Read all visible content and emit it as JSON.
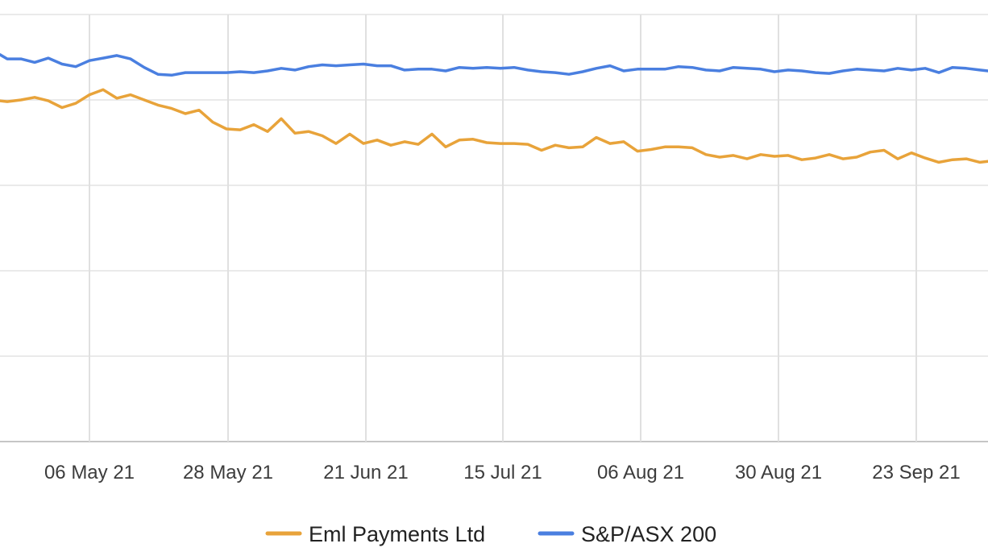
{
  "chart_data": {
    "type": "line",
    "title": "",
    "xlabel": "",
    "ylabel": "",
    "grid": true,
    "legend_position": "bottom",
    "x_ticks": [
      "06 May 21",
      "28 May 21",
      "21 Jun 21",
      "15 Jul 21",
      "06 Aug 21",
      "30 Aug 21",
      "23 Sep 21"
    ],
    "x_range": [
      0,
      1226
    ],
    "y_range": [
      0,
      50
    ],
    "series": [
      {
        "name": "Eml Payments Ltd",
        "color": "#e8a33a",
        "points": [
          [
            0,
            39.9
          ],
          [
            9,
            39.8
          ],
          [
            26,
            40.0
          ],
          [
            43,
            40.3
          ],
          [
            60,
            39.9
          ],
          [
            77,
            39.1
          ],
          [
            94,
            39.6
          ],
          [
            111,
            40.6
          ],
          [
            128,
            41.2
          ],
          [
            145,
            40.2
          ],
          [
            162,
            40.6
          ],
          [
            179,
            40.0
          ],
          [
            196,
            39.4
          ],
          [
            213,
            39.0
          ],
          [
            230,
            38.4
          ],
          [
            247,
            38.8
          ],
          [
            264,
            37.4
          ],
          [
            281,
            36.6
          ],
          [
            298,
            36.5
          ],
          [
            315,
            37.1
          ],
          [
            332,
            36.3
          ],
          [
            349,
            37.8
          ],
          [
            366,
            36.1
          ],
          [
            383,
            36.3
          ],
          [
            400,
            35.8
          ],
          [
            417,
            34.9
          ],
          [
            434,
            36.0
          ],
          [
            451,
            34.9
          ],
          [
            468,
            35.3
          ],
          [
            485,
            34.7
          ],
          [
            502,
            35.1
          ],
          [
            519,
            34.8
          ],
          [
            536,
            36.0
          ],
          [
            553,
            34.5
          ],
          [
            570,
            35.3
          ],
          [
            587,
            35.4
          ],
          [
            604,
            35.0
          ],
          [
            621,
            34.9
          ],
          [
            638,
            34.9
          ],
          [
            655,
            34.8
          ],
          [
            672,
            34.1
          ],
          [
            689,
            34.7
          ],
          [
            706,
            34.4
          ],
          [
            723,
            34.5
          ],
          [
            740,
            35.6
          ],
          [
            757,
            34.9
          ],
          [
            774,
            35.1
          ],
          [
            791,
            34.0
          ],
          [
            808,
            34.2
          ],
          [
            825,
            34.5
          ],
          [
            842,
            34.5
          ],
          [
            859,
            34.4
          ],
          [
            876,
            33.6
          ],
          [
            893,
            33.3
          ],
          [
            910,
            33.5
          ],
          [
            927,
            33.1
          ],
          [
            944,
            33.6
          ],
          [
            961,
            33.4
          ],
          [
            978,
            33.5
          ],
          [
            995,
            33.0
          ],
          [
            1012,
            33.2
          ],
          [
            1029,
            33.6
          ],
          [
            1046,
            33.1
          ],
          [
            1063,
            33.3
          ],
          [
            1080,
            33.9
          ],
          [
            1097,
            34.1
          ],
          [
            1114,
            33.1
          ],
          [
            1131,
            33.8
          ],
          [
            1148,
            33.2
          ],
          [
            1165,
            32.7
          ],
          [
            1182,
            33.0
          ],
          [
            1199,
            33.1
          ],
          [
            1216,
            32.7
          ],
          [
            1226,
            32.8
          ]
        ]
      },
      {
        "name": "S&P/ASX 200",
        "color": "#4a7fe0",
        "points": [
          [
            0,
            45.3
          ],
          [
            9,
            44.8
          ],
          [
            26,
            44.8
          ],
          [
            43,
            44.4
          ],
          [
            60,
            44.9
          ],
          [
            77,
            44.2
          ],
          [
            94,
            43.9
          ],
          [
            111,
            44.6
          ],
          [
            128,
            44.9
          ],
          [
            145,
            45.2
          ],
          [
            162,
            44.8
          ],
          [
            179,
            43.8
          ],
          [
            196,
            43.0
          ],
          [
            213,
            42.9
          ],
          [
            230,
            43.2
          ],
          [
            247,
            43.2
          ],
          [
            264,
            43.2
          ],
          [
            281,
            43.2
          ],
          [
            298,
            43.3
          ],
          [
            315,
            43.2
          ],
          [
            332,
            43.4
          ],
          [
            349,
            43.7
          ],
          [
            366,
            43.5
          ],
          [
            383,
            43.9
          ],
          [
            400,
            44.1
          ],
          [
            417,
            44.0
          ],
          [
            434,
            44.1
          ],
          [
            451,
            44.2
          ],
          [
            468,
            44.0
          ],
          [
            485,
            44.0
          ],
          [
            502,
            43.5
          ],
          [
            519,
            43.6
          ],
          [
            536,
            43.6
          ],
          [
            553,
            43.4
          ],
          [
            570,
            43.8
          ],
          [
            587,
            43.7
          ],
          [
            604,
            43.8
          ],
          [
            621,
            43.7
          ],
          [
            638,
            43.8
          ],
          [
            655,
            43.5
          ],
          [
            672,
            43.3
          ],
          [
            689,
            43.2
          ],
          [
            706,
            43.0
          ],
          [
            723,
            43.3
          ],
          [
            740,
            43.7
          ],
          [
            757,
            44.0
          ],
          [
            774,
            43.4
          ],
          [
            791,
            43.6
          ],
          [
            808,
            43.6
          ],
          [
            825,
            43.6
          ],
          [
            842,
            43.9
          ],
          [
            859,
            43.8
          ],
          [
            876,
            43.5
          ],
          [
            893,
            43.4
          ],
          [
            910,
            43.8
          ],
          [
            927,
            43.7
          ],
          [
            944,
            43.6
          ],
          [
            961,
            43.3
          ],
          [
            978,
            43.5
          ],
          [
            995,
            43.4
          ],
          [
            1012,
            43.2
          ],
          [
            1029,
            43.1
          ],
          [
            1046,
            43.4
          ],
          [
            1063,
            43.6
          ],
          [
            1080,
            43.5
          ],
          [
            1097,
            43.4
          ],
          [
            1114,
            43.7
          ],
          [
            1131,
            43.5
          ],
          [
            1148,
            43.7
          ],
          [
            1165,
            43.2
          ],
          [
            1182,
            43.8
          ],
          [
            1199,
            43.7
          ],
          [
            1216,
            43.5
          ],
          [
            1226,
            43.4
          ]
        ]
      }
    ]
  }
}
